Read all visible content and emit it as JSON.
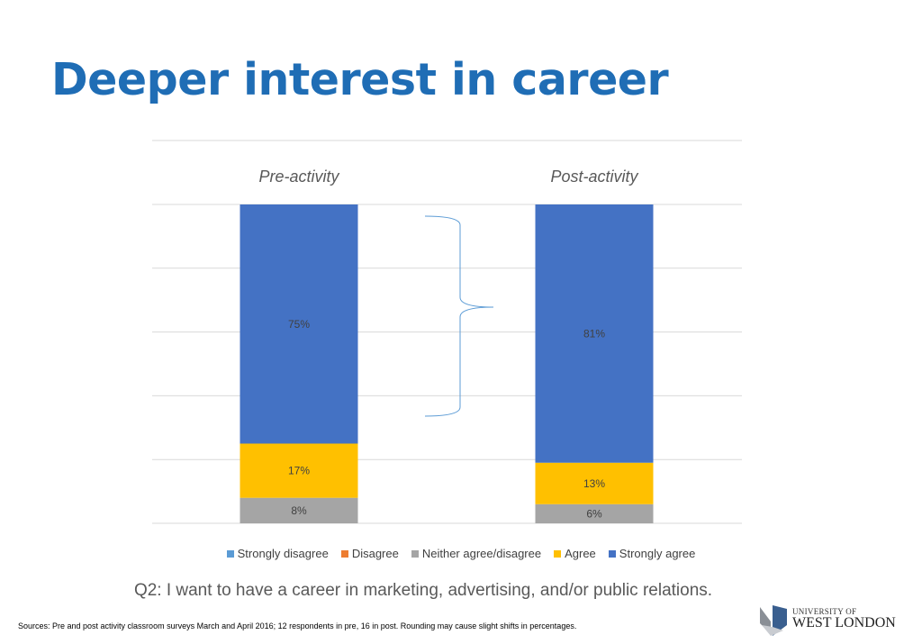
{
  "title": "Deeper interest in career",
  "chart_data": {
    "type": "bar",
    "stacked": true,
    "orientation": "vertical",
    "categories": [
      "Pre-activity",
      "Post-activity"
    ],
    "ylim": [
      0,
      100
    ],
    "grid": true,
    "legend_position": "bottom",
    "series": [
      {
        "name": "Strongly disagree",
        "color": "#5b9bd5",
        "values": [
          0,
          0
        ],
        "labels": [
          "",
          ""
        ]
      },
      {
        "name": "Disagree",
        "color": "#ed7d31",
        "values": [
          0,
          0
        ],
        "labels": [
          "",
          ""
        ]
      },
      {
        "name": "Neither agree/disagree",
        "color": "#a5a5a5",
        "values": [
          8,
          6
        ],
        "labels": [
          "8%",
          "6%"
        ]
      },
      {
        "name": "Agree",
        "color": "#ffc000",
        "values": [
          17,
          13
        ],
        "labels": [
          "17%",
          "13%"
        ]
      },
      {
        "name": "Strongly agree",
        "color": "#4472c4",
        "values": [
          75,
          81
        ],
        "labels": [
          "75%",
          "81%"
        ]
      }
    ]
  },
  "question": "Q2: I want to have a career in marketing, advertising, and/or public relations.",
  "sources": "Sources: Pre and post activity classroom surveys March and April 2016; 12 respondents in pre, 16 in post. Rounding may cause slight  shifts in percentages.",
  "logo": {
    "line1": "UNIVERSITY OF",
    "line2": "WEST LONDON"
  }
}
